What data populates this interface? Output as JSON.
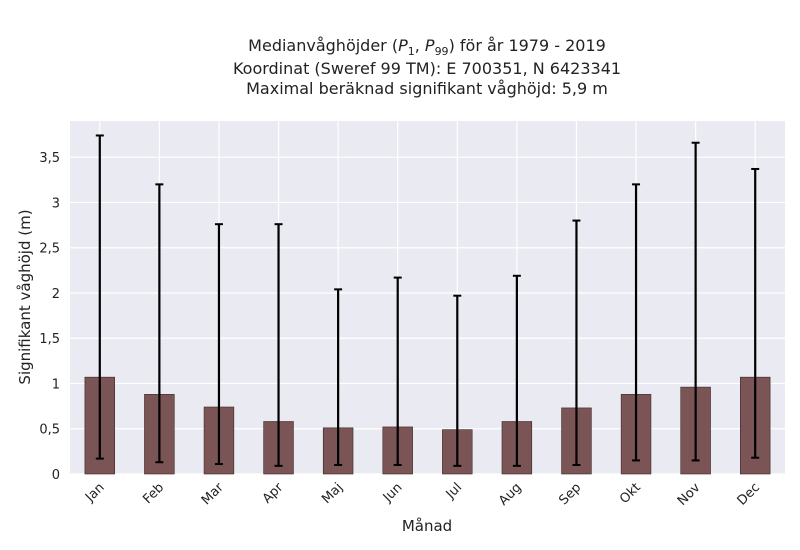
{
  "chart_data": {
    "type": "bar",
    "title_lines": [
      "Medianvåghöjder (P1, P99) för år 1979 - 2019",
      "Koordinat (Sweref 99 TM): E 700351, N 6423341",
      "Maximal beräknad signifikant våghöjd: 5,9 m"
    ],
    "xlabel": "Månad",
    "ylabel": "Signifikant våghöjd (m)",
    "ylim": [
      0,
      3.9
    ],
    "yticks": [
      0,
      0.5,
      1,
      1.5,
      2,
      2.5,
      3,
      3.5
    ],
    "ytick_labels": [
      "0",
      "0,5",
      "1",
      "1,5",
      "2",
      "2,5",
      "3",
      "3,5"
    ],
    "grid": true,
    "categories": [
      "Jan",
      "Feb",
      "Mar",
      "Apr",
      "Maj",
      "Jun",
      "Jul",
      "Aug",
      "Sep",
      "Okt",
      "Nov",
      "Dec"
    ],
    "values": [
      1.07,
      0.88,
      0.74,
      0.58,
      0.51,
      0.52,
      0.49,
      0.58,
      0.73,
      0.88,
      0.96,
      1.07
    ],
    "error_low": [
      0.17,
      0.13,
      0.11,
      0.09,
      0.1,
      0.1,
      0.09,
      0.09,
      0.1,
      0.15,
      0.15,
      0.18
    ],
    "error_high": [
      3.74,
      3.2,
      2.76,
      2.76,
      2.04,
      2.17,
      1.97,
      2.19,
      2.8,
      3.2,
      3.66,
      3.37
    ],
    "colors": {
      "bar": "#7b5555",
      "bar_edge": "#3a2626",
      "plot_background": "#eaeaf2",
      "grid": "#ffffff",
      "error_bar": "#000000"
    }
  }
}
